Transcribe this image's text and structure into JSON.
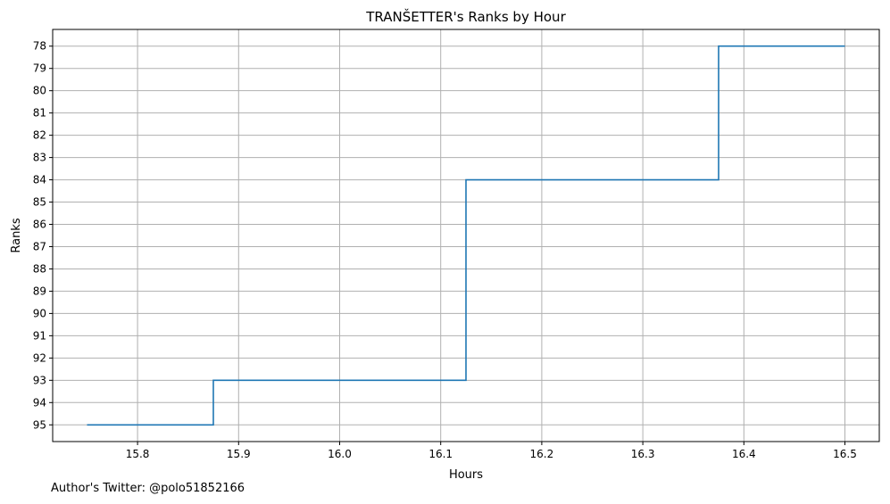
{
  "chart_data": {
    "type": "line",
    "step": "post",
    "title": "TRANŠETTER's Ranks by Hour",
    "xlabel": "Hours",
    "ylabel": "Ranks",
    "xlim": [
      15.716,
      16.534
    ],
    "ylim": [
      95.75,
      77.25
    ],
    "y_inverted": true,
    "grid": true,
    "x_ticks": [
      "15.8",
      "15.9",
      "16.0",
      "16.1",
      "16.2",
      "16.3",
      "16.4",
      "16.5"
    ],
    "y_ticks": [
      "78",
      "79",
      "80",
      "81",
      "82",
      "83",
      "84",
      "85",
      "86",
      "87",
      "88",
      "89",
      "90",
      "91",
      "92",
      "93",
      "94",
      "95"
    ],
    "series": [
      {
        "color": "#1f77b4",
        "points": [
          {
            "x": 15.75,
            "y": 95
          },
          {
            "x": 15.875,
            "y": 93
          },
          {
            "x": 16.125,
            "y": 84
          },
          {
            "x": 16.375,
            "y": 78
          },
          {
            "x": 16.5,
            "y": 78
          }
        ]
      }
    ]
  },
  "footer": {
    "text": "Author's Twitter: @polo51852166"
  }
}
